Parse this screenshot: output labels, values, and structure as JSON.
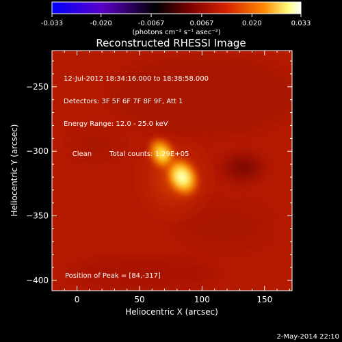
{
  "colorbar": {
    "tick_labels": [
      "-0.033",
      "-0.020",
      "-0.0067",
      "0.0067",
      "0.020",
      "0.033"
    ],
    "tick_values": [
      -0.033,
      -0.02,
      -0.0067,
      0.0067,
      0.02,
      0.033
    ],
    "range": [
      -0.033,
      0.033
    ],
    "unit_label": "(photons cm⁻² s⁻¹ asec⁻²)",
    "colors": [
      "#0000ff",
      "#5a00c8",
      "#000000",
      "#7a0000",
      "#d42200",
      "#ff8800",
      "#ffff80",
      "#ffffff"
    ]
  },
  "chart_data": {
    "type": "heatmap",
    "title": "Reconstructed RHESSI Image",
    "xlabel": "Heliocentric X (arcsec)",
    "ylabel": "Heliocentric Y (arcsec)",
    "xlim": [
      -20,
      172
    ],
    "ylim": [
      -408,
      -222
    ],
    "x_ticks": [
      0,
      50,
      100,
      150
    ],
    "x_tick_labels": [
      "0",
      "50",
      "100",
      "150"
    ],
    "y_ticks": [
      -250,
      -300,
      -350,
      -400
    ],
    "y_tick_labels": [
      "−250",
      "−300",
      "−350",
      "−400"
    ],
    "peak_position": [
      84,
      -317
    ],
    "source_peaks": [
      {
        "x": 68,
        "y": -302,
        "relative_intensity": 0.85
      },
      {
        "x": 84,
        "y": -320,
        "relative_intensity": 1.0
      }
    ],
    "annotations": {
      "time_range": "12-Jul-2012 18:34:16.000 to 18:38:58.000",
      "detectors": "Detectors: 3F 5F 6F 7F 8F 9F, Att 1",
      "energy_range": "Energy Range: 12.0 - 25.0 keV",
      "method": "Clean",
      "total_counts": "Total counts: 1.29E+05",
      "peak_label": "Position of Peak = [84,-317]"
    }
  },
  "footer": {
    "timestamp": "2-May-2014 22:10"
  }
}
